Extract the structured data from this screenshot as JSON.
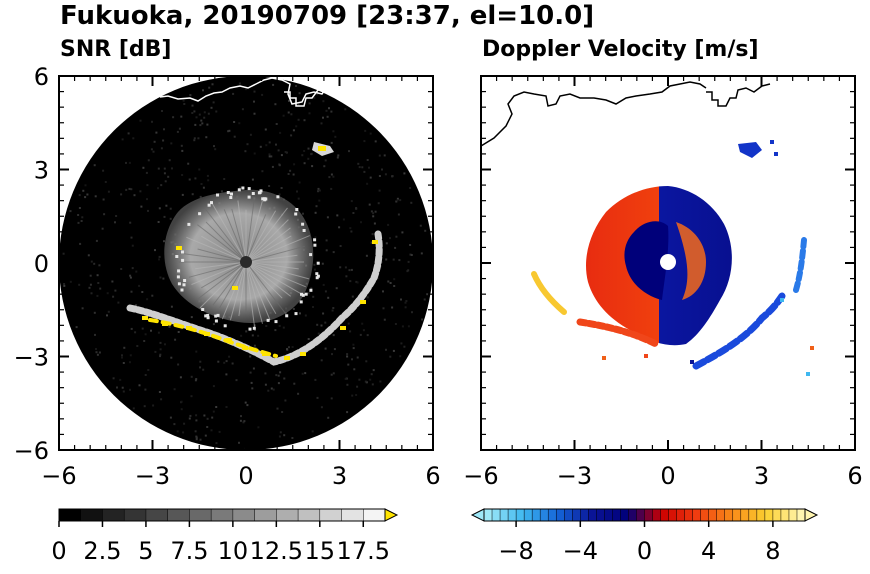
{
  "figure": {
    "title": "Fukuoka, 20190709 [23:37, el=10.0]"
  },
  "chart_data": [
    {
      "type": "heatmap",
      "panel_title": "SNR [dB]",
      "xlim": [
        -6,
        6
      ],
      "ylim": [
        -6,
        6
      ],
      "xticks": [
        -6,
        -3,
        0,
        3,
        6
      ],
      "xtick_labels": [
        "−6",
        "−3",
        "0",
        "3",
        "6"
      ],
      "yticks": [
        -6,
        -3,
        0,
        3,
        6
      ],
      "ytick_labels": [
        "−6",
        "−3",
        "0",
        "3",
        "6"
      ],
      "radar_range": 6,
      "background_color": "#000000",
      "colorbar": {
        "min": 0,
        "max": 18.75,
        "step": 1.25,
        "extend": "max",
        "ticks": [
          0,
          2.5,
          5,
          7.5,
          10,
          12.5,
          15,
          17.5
        ],
        "tick_labels": [
          "0",
          "2.5",
          "5",
          "7.5",
          "10",
          "12.5",
          "15",
          "17.5"
        ],
        "low_color": "#000000",
        "high_color": "#f4f4f4",
        "over_color": "#ffe400"
      }
    },
    {
      "type": "heatmap",
      "panel_title": "Doppler Velocity [m/s]",
      "xlim": [
        -6,
        6
      ],
      "ylim": [
        -6,
        6
      ],
      "xticks": [
        -6,
        -3,
        0,
        3,
        6
      ],
      "xtick_labels": [
        "−6",
        "−3",
        "0",
        "3",
        "6"
      ],
      "yticks": [
        -6,
        -3,
        0,
        3,
        6
      ],
      "ytick_labels": [
        "",
        "",
        "",
        "",
        ""
      ],
      "colorbar": {
        "min": -10,
        "max": 10,
        "step": 0.5,
        "extend": "both",
        "ticks": [
          -8,
          -4,
          0,
          4,
          8
        ],
        "tick_labels": [
          "−8",
          "−4",
          "0",
          "4",
          "8"
        ],
        "colors": [
          "#9fe8f8",
          "#3fb8f0",
          "#1464d8",
          "#0a1496",
          "#00007a",
          "#cc0000",
          "#f03c10",
          "#f88818",
          "#fcd030",
          "#fff5b0"
        ]
      }
    }
  ]
}
